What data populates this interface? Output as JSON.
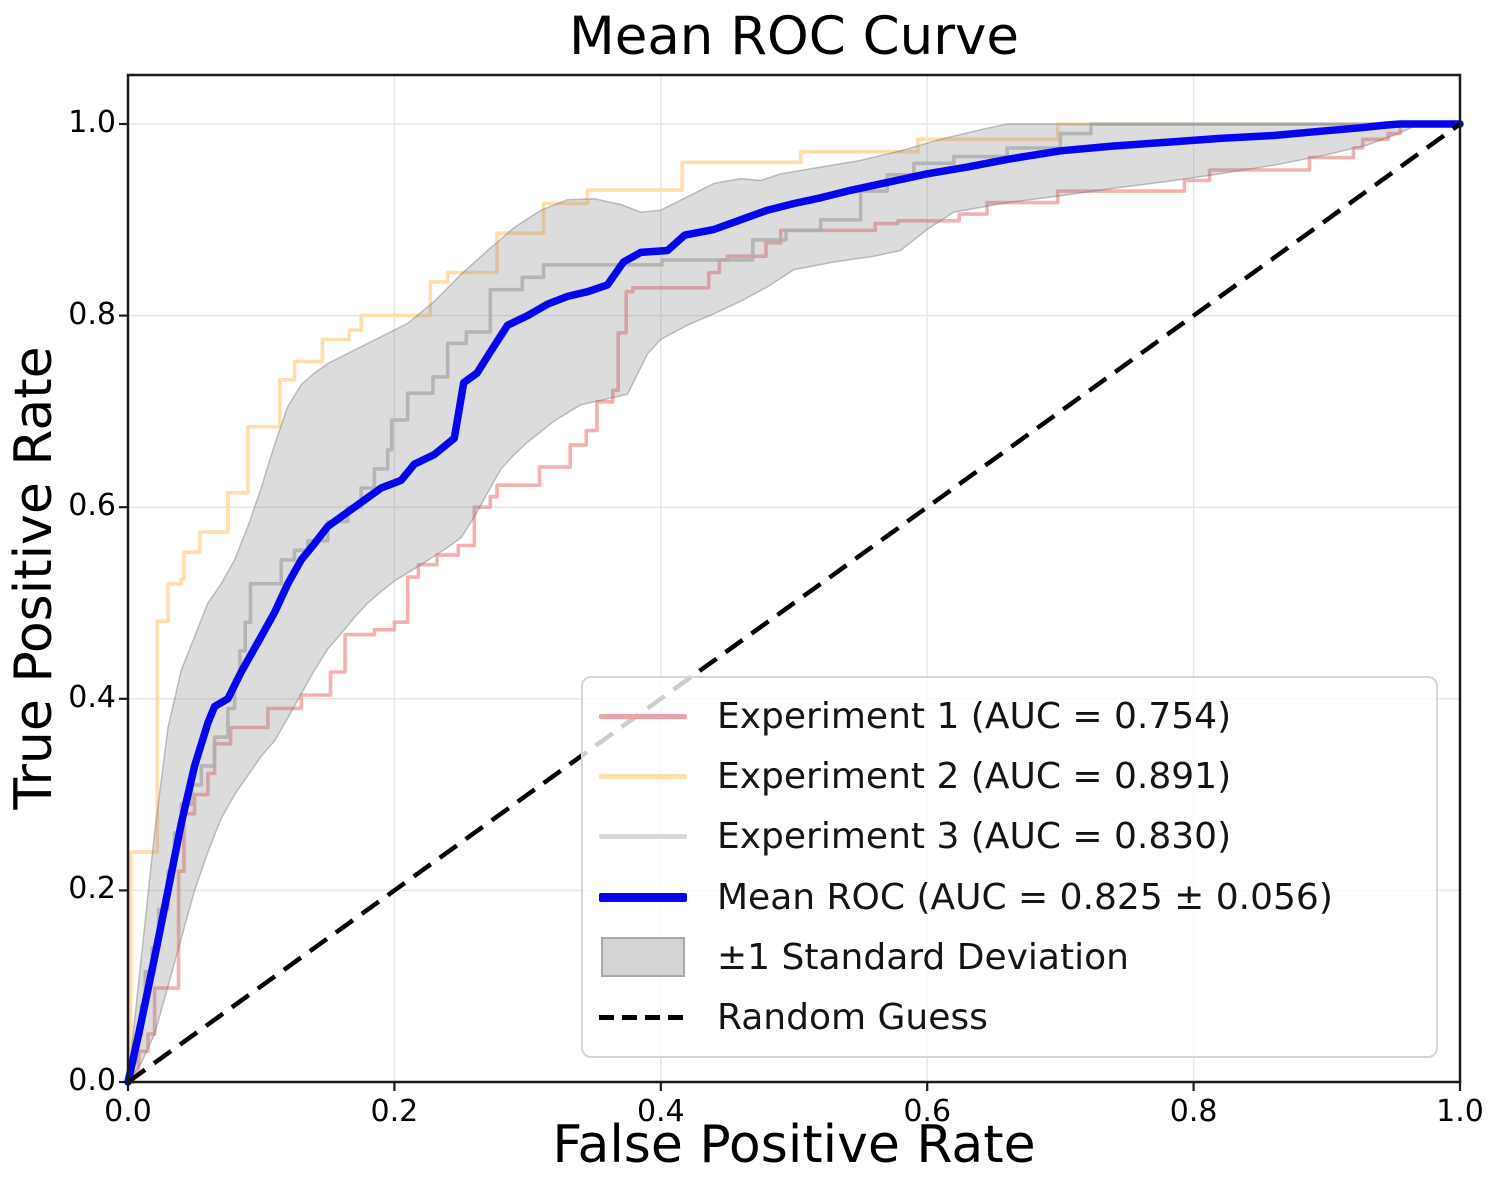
{
  "figure": {
    "title": "Mean ROC Curve",
    "xlabel": "False Positive Rate",
    "ylabel": "True Positive Rate"
  },
  "legend": {
    "position": "lower right",
    "items": [
      {
        "swatch": "line",
        "color": "#F1A3A3",
        "label": "Experiment 1 (AUC = 0.754)"
      },
      {
        "swatch": "line",
        "color": "#FFDEAD",
        "label": "Experiment 2 (AUC = 0.891)"
      },
      {
        "swatch": "line",
        "color": "#D8D8D8",
        "label": "Experiment 3 (AUC = 0.830)"
      },
      {
        "swatch": "line-thick",
        "color": "#0505EE",
        "label": "Mean ROC (AUC = 0.825 ± 0.056)"
      },
      {
        "swatch": "patch",
        "color": "#D4D4D4",
        "label": "±1 Standard Deviation"
      },
      {
        "swatch": "dash",
        "color": "#000000",
        "label": "Random Guess"
      }
    ]
  },
  "chart_data": {
    "type": "line",
    "title": "Mean ROC Curve",
    "xlabel": "False Positive Rate",
    "ylabel": "True Positive Rate",
    "xlim": [
      0.0,
      1.0
    ],
    "ylim": [
      0.0,
      1.05
    ],
    "grid": true,
    "x_tick_values": [
      0.0,
      0.2,
      0.4,
      0.6,
      0.8,
      1.0
    ],
    "x_tick_labels": [
      "0.0",
      "0.2",
      "0.4",
      "0.6",
      "0.8",
      "1.0"
    ],
    "y_tick_values": [
      0.0,
      0.2,
      0.4,
      0.6,
      0.8,
      1.0
    ],
    "y_tick_labels": [
      "0.0",
      "0.2",
      "0.4",
      "0.6",
      "0.8",
      "1.0"
    ],
    "series": [
      {
        "name": "Experiment 1 (AUC = 0.754)",
        "auc": 0.754,
        "color": "#F08080",
        "opacity": 0.62,
        "width": 3.6,
        "line_style": "step",
        "points": [
          [
            0.004,
            0.01
          ],
          [
            0.008,
            0.032
          ],
          [
            0.015,
            0.05
          ],
          [
            0.02,
            0.098
          ],
          [
            0.038,
            0.22
          ],
          [
            0.042,
            0.28
          ],
          [
            0.05,
            0.3
          ],
          [
            0.06,
            0.322
          ],
          [
            0.065,
            0.353
          ],
          [
            0.077,
            0.37
          ],
          [
            0.105,
            0.39
          ],
          [
            0.13,
            0.404
          ],
          [
            0.152,
            0.428
          ],
          [
            0.163,
            0.467
          ],
          [
            0.185,
            0.472
          ],
          [
            0.2,
            0.48
          ],
          [
            0.21,
            0.527
          ],
          [
            0.218,
            0.54
          ],
          [
            0.232,
            0.55
          ],
          [
            0.248,
            0.56
          ],
          [
            0.26,
            0.6
          ],
          [
            0.272,
            0.611
          ],
          [
            0.277,
            0.623
          ],
          [
            0.309,
            0.642
          ],
          [
            0.332,
            0.665
          ],
          [
            0.344,
            0.68
          ],
          [
            0.352,
            0.71
          ],
          [
            0.364,
            0.722
          ],
          [
            0.368,
            0.782
          ],
          [
            0.374,
            0.825
          ],
          [
            0.379,
            0.829
          ],
          [
            0.436,
            0.845
          ],
          [
            0.444,
            0.858
          ],
          [
            0.45,
            0.862
          ],
          [
            0.479,
            0.876
          ],
          [
            0.49,
            0.889
          ],
          [
            0.561,
            0.896
          ],
          [
            0.578,
            0.899
          ],
          [
            0.624,
            0.906
          ],
          [
            0.645,
            0.918
          ],
          [
            0.698,
            0.93
          ],
          [
            0.793,
            0.941
          ],
          [
            0.812,
            0.952
          ],
          [
            0.887,
            0.965
          ],
          [
            0.92,
            0.975
          ],
          [
            0.927,
            0.984
          ],
          [
            0.946,
            0.99
          ],
          [
            0.955,
            1.0
          ],
          [
            1.0,
            1.0
          ]
        ]
      },
      {
        "name": "Experiment 2 (AUC = 0.891)",
        "auc": 0.891,
        "color": "#FFDEAD",
        "opacity": 1.0,
        "width": 3.6,
        "line_style": "step",
        "points": [
          [
            0.002,
            0.24
          ],
          [
            0.022,
            0.481
          ],
          [
            0.03,
            0.52
          ],
          [
            0.04,
            0.525
          ],
          [
            0.042,
            0.553
          ],
          [
            0.054,
            0.574
          ],
          [
            0.075,
            0.615
          ],
          [
            0.09,
            0.684
          ],
          [
            0.114,
            0.733
          ],
          [
            0.125,
            0.752
          ],
          [
            0.146,
            0.775
          ],
          [
            0.166,
            0.785
          ],
          [
            0.175,
            0.8
          ],
          [
            0.227,
            0.835
          ],
          [
            0.24,
            0.845
          ],
          [
            0.277,
            0.886
          ],
          [
            0.312,
            0.917
          ],
          [
            0.345,
            0.931
          ],
          [
            0.416,
            0.96
          ],
          [
            0.505,
            0.971
          ],
          [
            0.593,
            0.984
          ],
          [
            0.698,
            1.0
          ],
          [
            1.0,
            1.0
          ]
        ]
      },
      {
        "name": "Experiment 3 (AUC = 0.830)",
        "auc": 0.83,
        "color": "#BFBFBF",
        "opacity": 0.85,
        "width": 3.6,
        "line_style": "step",
        "points": [
          [
            0.003,
            0.02
          ],
          [
            0.006,
            0.05
          ],
          [
            0.01,
            0.08
          ],
          [
            0.013,
            0.115
          ],
          [
            0.018,
            0.14
          ],
          [
            0.023,
            0.18
          ],
          [
            0.03,
            0.22
          ],
          [
            0.035,
            0.26
          ],
          [
            0.04,
            0.29
          ],
          [
            0.048,
            0.31
          ],
          [
            0.055,
            0.33
          ],
          [
            0.065,
            0.36
          ],
          [
            0.075,
            0.39
          ],
          [
            0.08,
            0.42
          ],
          [
            0.084,
            0.45
          ],
          [
            0.088,
            0.48
          ],
          [
            0.092,
            0.52
          ],
          [
            0.115,
            0.545
          ],
          [
            0.125,
            0.555
          ],
          [
            0.135,
            0.565
          ],
          [
            0.15,
            0.585
          ],
          [
            0.165,
            0.6
          ],
          [
            0.175,
            0.62
          ],
          [
            0.185,
            0.64
          ],
          [
            0.195,
            0.66
          ],
          [
            0.198,
            0.691
          ],
          [
            0.21,
            0.719
          ],
          [
            0.229,
            0.736
          ],
          [
            0.24,
            0.771
          ],
          [
            0.254,
            0.783
          ],
          [
            0.272,
            0.827
          ],
          [
            0.296,
            0.84
          ],
          [
            0.312,
            0.853
          ],
          [
            0.401,
            0.858
          ],
          [
            0.469,
            0.879
          ],
          [
            0.494,
            0.889
          ],
          [
            0.52,
            0.9
          ],
          [
            0.55,
            0.93
          ],
          [
            0.57,
            0.947
          ],
          [
            0.59,
            0.959
          ],
          [
            0.62,
            0.966
          ],
          [
            0.66,
            0.975
          ],
          [
            0.7,
            0.99
          ],
          [
            0.723,
            1.0
          ],
          [
            1.0,
            1.0
          ]
        ]
      },
      {
        "name": "Mean ROC (AUC = 0.825 ± 0.056)",
        "auc": 0.825,
        "auc_std": 0.056,
        "color": "#0505EE",
        "opacity": 1.0,
        "width": 7.5,
        "line_style": "linear",
        "points": [
          [
            0,
            0
          ],
          [
            0.008,
            0.05
          ],
          [
            0.02,
            0.13
          ],
          [
            0.03,
            0.2
          ],
          [
            0.04,
            0.27
          ],
          [
            0.05,
            0.33
          ],
          [
            0.06,
            0.375
          ],
          [
            0.065,
            0.392
          ],
          [
            0.075,
            0.4
          ],
          [
            0.085,
            0.428
          ],
          [
            0.1,
            0.465
          ],
          [
            0.11,
            0.49
          ],
          [
            0.12,
            0.52
          ],
          [
            0.13,
            0.545
          ],
          [
            0.14,
            0.562
          ],
          [
            0.15,
            0.58
          ],
          [
            0.16,
            0.59
          ],
          [
            0.175,
            0.605
          ],
          [
            0.19,
            0.62
          ],
          [
            0.205,
            0.628
          ],
          [
            0.215,
            0.645
          ],
          [
            0.23,
            0.655
          ],
          [
            0.245,
            0.672
          ],
          [
            0.252,
            0.73
          ],
          [
            0.262,
            0.74
          ],
          [
            0.272,
            0.762
          ],
          [
            0.285,
            0.79
          ],
          [
            0.3,
            0.8
          ],
          [
            0.315,
            0.812
          ],
          [
            0.33,
            0.82
          ],
          [
            0.345,
            0.825
          ],
          [
            0.36,
            0.832
          ],
          [
            0.372,
            0.856
          ],
          [
            0.385,
            0.866
          ],
          [
            0.405,
            0.868
          ],
          [
            0.418,
            0.884
          ],
          [
            0.44,
            0.89
          ],
          [
            0.46,
            0.9
          ],
          [
            0.48,
            0.91
          ],
          [
            0.5,
            0.917
          ],
          [
            0.52,
            0.923
          ],
          [
            0.54,
            0.93
          ],
          [
            0.56,
            0.936
          ],
          [
            0.58,
            0.942
          ],
          [
            0.6,
            0.948
          ],
          [
            0.63,
            0.955
          ],
          [
            0.66,
            0.963
          ],
          [
            0.7,
            0.972
          ],
          [
            0.74,
            0.977
          ],
          [
            0.78,
            0.981
          ],
          [
            0.82,
            0.985
          ],
          [
            0.86,
            0.988
          ],
          [
            0.9,
            0.993
          ],
          [
            0.925,
            0.996
          ],
          [
            0.945,
            0.999
          ],
          [
            0.955,
            1.0
          ],
          [
            1.0,
            1.0
          ]
        ]
      },
      {
        "name": "Random Guess",
        "color": "#000000",
        "opacity": 1.0,
        "width": 4.5,
        "line_style": "dashed",
        "points": [
          [
            0,
            0
          ],
          [
            1,
            1
          ]
        ]
      }
    ],
    "band": {
      "name": "±1 Standard Deviation",
      "fill": "#808080",
      "fill_opacity": 0.28,
      "edge": "#7a7a7a",
      "edge_opacity": 0.45,
      "edge_width": 1.5,
      "upper": [
        [
          0,
          0
        ],
        [
          0.01,
          0.13
        ],
        [
          0.02,
          0.26
        ],
        [
          0.03,
          0.37
        ],
        [
          0.04,
          0.43
        ],
        [
          0.05,
          0.465
        ],
        [
          0.06,
          0.5
        ],
        [
          0.07,
          0.52
        ],
        [
          0.08,
          0.545
        ],
        [
          0.09,
          0.58
        ],
        [
          0.1,
          0.62
        ],
        [
          0.11,
          0.665
        ],
        [
          0.12,
          0.705
        ],
        [
          0.13,
          0.728
        ],
        [
          0.14,
          0.74
        ],
        [
          0.15,
          0.75
        ],
        [
          0.17,
          0.764
        ],
        [
          0.19,
          0.778
        ],
        [
          0.21,
          0.792
        ],
        [
          0.23,
          0.815
        ],
        [
          0.25,
          0.843
        ],
        [
          0.27,
          0.868
        ],
        [
          0.29,
          0.892
        ],
        [
          0.31,
          0.91
        ],
        [
          0.33,
          0.921
        ],
        [
          0.35,
          0.922
        ],
        [
          0.37,
          0.916
        ],
        [
          0.385,
          0.908
        ],
        [
          0.4,
          0.91
        ],
        [
          0.42,
          0.924
        ],
        [
          0.44,
          0.938
        ],
        [
          0.46,
          0.943
        ],
        [
          0.475,
          0.941
        ],
        [
          0.49,
          0.948
        ],
        [
          0.52,
          0.955
        ],
        [
          0.55,
          0.962
        ],
        [
          0.58,
          0.972
        ],
        [
          0.61,
          0.984
        ],
        [
          0.64,
          0.994
        ],
        [
          0.66,
          1.0
        ],
        [
          1.0,
          1.0
        ]
      ],
      "lower": [
        [
          0,
          0
        ],
        [
          0.01,
          0.02
        ],
        [
          0.02,
          0.05
        ],
        [
          0.03,
          0.1
        ],
        [
          0.04,
          0.15
        ],
        [
          0.05,
          0.2
        ],
        [
          0.06,
          0.24
        ],
        [
          0.07,
          0.275
        ],
        [
          0.08,
          0.3
        ],
        [
          0.09,
          0.32
        ],
        [
          0.1,
          0.34
        ],
        [
          0.11,
          0.356
        ],
        [
          0.12,
          0.38
        ],
        [
          0.13,
          0.405
        ],
        [
          0.14,
          0.43
        ],
        [
          0.15,
          0.452
        ],
        [
          0.16,
          0.468
        ],
        [
          0.17,
          0.485
        ],
        [
          0.18,
          0.5
        ],
        [
          0.19,
          0.512
        ],
        [
          0.2,
          0.523
        ],
        [
          0.22,
          0.54
        ],
        [
          0.24,
          0.558
        ],
        [
          0.25,
          0.568
        ],
        [
          0.26,
          0.59
        ],
        [
          0.27,
          0.615
        ],
        [
          0.28,
          0.64
        ],
        [
          0.29,
          0.655
        ],
        [
          0.3,
          0.668
        ],
        [
          0.32,
          0.69
        ],
        [
          0.34,
          0.707
        ],
        [
          0.36,
          0.713
        ],
        [
          0.375,
          0.718
        ],
        [
          0.39,
          0.76
        ],
        [
          0.4,
          0.775
        ],
        [
          0.42,
          0.79
        ],
        [
          0.44,
          0.802
        ],
        [
          0.46,
          0.815
        ],
        [
          0.48,
          0.83
        ],
        [
          0.5,
          0.848
        ],
        [
          0.53,
          0.856
        ],
        [
          0.56,
          0.862
        ],
        [
          0.58,
          0.868
        ],
        [
          0.6,
          0.89
        ],
        [
          0.62,
          0.908
        ],
        [
          0.66,
          0.918
        ],
        [
          0.7,
          0.925
        ],
        [
          0.74,
          0.933
        ],
        [
          0.78,
          0.94
        ],
        [
          0.82,
          0.948
        ],
        [
          0.86,
          0.957
        ],
        [
          0.9,
          0.968
        ],
        [
          0.93,
          0.978
        ],
        [
          0.95,
          0.988
        ],
        [
          0.97,
          1.0
        ],
        [
          1.0,
          1.0
        ]
      ]
    }
  }
}
